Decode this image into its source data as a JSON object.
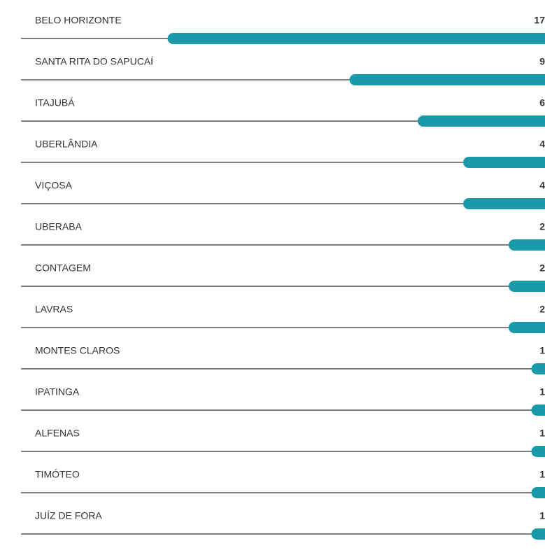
{
  "chart_data": {
    "type": "bar",
    "orientation": "horizontal",
    "categories": [
      "BELO HORIZONTE",
      "SANTA RITA DO SAPUCAÍ",
      "ITAJUBÁ",
      "UBERLÂNDIA",
      "VIÇOSA",
      "UBERABA",
      "CONTAGEM",
      "LAVRAS",
      "MONTES CLAROS",
      "IPATINGA",
      "ALFENAS",
      "TIMÓTEO",
      "JUÍZ DE FORA"
    ],
    "values": [
      17,
      9,
      6,
      4,
      4,
      2,
      2,
      2,
      1,
      1,
      1,
      1,
      1
    ],
    "color": "#1a9aa8"
  }
}
